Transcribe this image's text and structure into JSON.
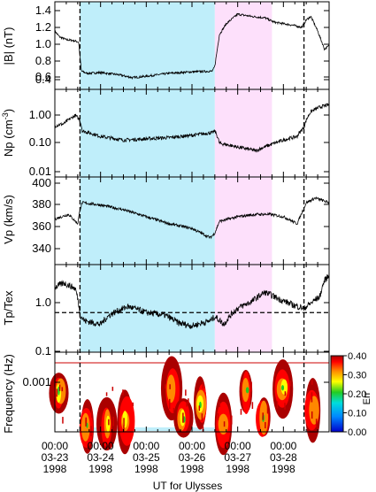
{
  "chart_data": {
    "type": "multi-panel time series with spectrogram",
    "xlabel": "UT for Ulysses",
    "x_ticks": [
      {
        "time": "00:00",
        "date": "03-23",
        "year": "1998"
      },
      {
        "time": "00:00",
        "date": "03-24",
        "year": "1998"
      },
      {
        "time": "00:00",
        "date": "03-25",
        "year": "1998"
      },
      {
        "time": "00:00",
        "date": "03-26",
        "year": "1998"
      },
      {
        "time": "00:00",
        "date": "03-27",
        "year": "1998"
      },
      {
        "time": "00:00",
        "date": "03-28",
        "year": "1998"
      }
    ],
    "x_range_days": [
      0,
      6.0
    ],
    "boundaries_days": [
      0.55,
      5.45
    ],
    "shaded_regions": [
      {
        "start_day": 0.55,
        "end_day": 3.5,
        "color": "#bfeefa"
      },
      {
        "start_day": 3.5,
        "end_day": 4.75,
        "color": "#fde0fb"
      }
    ],
    "panels": [
      {
        "ylabel": "|B| (nT)",
        "scale": "linear",
        "ylim": [
          0.3,
          1.5
        ],
        "y_ticks": [
          "1.4",
          "1.2",
          "1.0",
          "0.8",
          "0.6",
          "0.4"
        ],
        "series": [
          {
            "x": [
              0,
              0.1,
              0.25,
              0.4,
              0.52,
              0.58,
              0.7,
              1.0,
              1.4,
              1.7,
              2.0,
              2.5,
              3.0,
              3.45,
              3.5,
              3.6,
              3.75,
              4.0,
              4.3,
              4.6,
              4.8,
              5.2,
              5.4,
              5.5,
              5.6,
              5.75,
              5.9,
              6.0
            ],
            "y": [
              1.1,
              1.02,
              0.98,
              0.97,
              0.95,
              0.55,
              0.52,
              0.53,
              0.5,
              0.46,
              0.48,
              0.52,
              0.54,
              0.55,
              0.62,
              1.05,
              1.2,
              1.33,
              1.3,
              1.28,
              1.22,
              1.18,
              1.15,
              1.25,
              1.3,
              1.1,
              0.85,
              0.9
            ]
          }
        ]
      },
      {
        "ylabel": "Np (cm",
        "ylabel_sup": "-3",
        "ylabel_end": ")",
        "scale": "log",
        "ylim": [
          0.01,
          3.0
        ],
        "y_ticks": [
          "1.00",
          "0.10",
          "0.01"
        ],
        "series": [
          {
            "x": [
              0,
              0.2,
              0.45,
              0.55,
              0.6,
              1.0,
              1.5,
              2.0,
              2.5,
              3.0,
              3.45,
              3.5,
              3.6,
              4.0,
              4.4,
              4.7,
              4.9,
              5.3,
              5.45,
              5.6,
              5.8,
              6.0
            ],
            "y": [
              0.28,
              0.32,
              0.55,
              0.4,
              0.2,
              0.14,
              0.11,
              0.12,
              0.13,
              0.15,
              0.18,
              0.2,
              0.09,
              0.07,
              0.055,
              0.08,
              0.1,
              0.14,
              0.25,
              0.7,
              0.95,
              1.1
            ]
          }
        ]
      },
      {
        "ylabel": "Vp (km/s)",
        "scale": "linear",
        "ylim": [
          325,
          400
        ],
        "y_ticks": [
          "400",
          "380",
          "360",
          "340"
        ],
        "series": [
          {
            "x": [
              0,
              0.3,
              0.5,
              0.55,
              0.6,
              1.0,
              1.5,
              2.0,
              2.5,
              3.0,
              3.4,
              3.5,
              3.6,
              4.0,
              4.4,
              4.7,
              5.0,
              5.3,
              5.5,
              5.7,
              6.0
            ],
            "y": [
              364,
              368,
              360,
              372,
              378,
              376,
              372,
              366,
              360,
              356,
              348,
              352,
              362,
              366,
              368,
              368,
              366,
              360,
              378,
              382,
              378
            ]
          }
        ]
      },
      {
        "ylabel": "Tp/Tex",
        "scale": "log",
        "ylim": [
          0.09,
          4.0
        ],
        "y_ticks": [
          "1.0",
          "0.1"
        ],
        "reference_line": 0.5,
        "series": [
          {
            "x": [
              0,
              0.2,
              0.45,
              0.55,
              0.65,
              1.0,
              1.2,
              1.6,
              2.0,
              2.4,
              2.7,
              3.0,
              3.4,
              3.5,
              3.7,
              4.0,
              4.3,
              4.6,
              4.9,
              5.2,
              5.45,
              5.6,
              5.8,
              5.9,
              6.0
            ],
            "y": [
              1.5,
              1.8,
              1.4,
              0.45,
              0.35,
              0.3,
              0.45,
              0.65,
              0.5,
              0.45,
              0.32,
              0.28,
              0.35,
              0.42,
              0.3,
              0.6,
              0.8,
              1.2,
              0.9,
              0.7,
              0.6,
              0.75,
              1.0,
              2.0,
              2.5
            ]
          }
        ]
      },
      {
        "ylabel": "Frequency (Hz)",
        "scale": "log",
        "type": "heatmap",
        "y_ticks": [
          "0.001"
        ],
        "colorbar": {
          "label": "Err",
          "ticks": [
            "0.40",
            "0.30",
            "0.20",
            "0.10",
            "0.00"
          ],
          "range": [
            0,
            0.4
          ],
          "colors": [
            "#0000cc",
            "#0088ff",
            "#00dddd",
            "#22cc22",
            "#ffff00",
            "#ff8800",
            "#ff0000",
            "#aa0000"
          ]
        },
        "events_days": [
          0.1,
          0.7,
          1.15,
          1.55,
          2.55,
          2.8,
          3.2,
          3.7,
          4.2,
          4.55,
          5.0,
          5.65
        ]
      }
    ]
  }
}
